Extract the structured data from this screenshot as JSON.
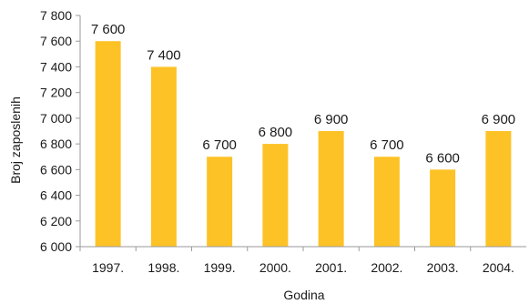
{
  "chart_data": {
    "type": "bar",
    "title": "",
    "xlabel": "Godina",
    "ylabel": "Broj zaposlenih",
    "categories": [
      "1997.",
      "1998.",
      "1999.",
      "2000.",
      "2001.",
      "2002.",
      "2003.",
      "2004."
    ],
    "values": [
      7600,
      7400,
      6700,
      6800,
      6900,
      6700,
      6600,
      6900
    ],
    "value_labels": [
      "7 600",
      "7 400",
      "6 700",
      "6 800",
      "6 900",
      "6 700",
      "6 600",
      "6 900"
    ],
    "ylim": [
      6000,
      7800
    ],
    "yticks": [
      6000,
      6200,
      6400,
      6600,
      6800,
      7000,
      7200,
      7400,
      7600,
      7800
    ],
    "ytick_labels": [
      "6 000",
      "6 200",
      "6 400",
      "6 600",
      "6 800",
      "7 000",
      "7 200",
      "7 400",
      "7 600",
      "7 800"
    ],
    "grid": false,
    "legend": "none",
    "bar_color": "#FDC226",
    "axis_color": "#9a9a9a"
  }
}
